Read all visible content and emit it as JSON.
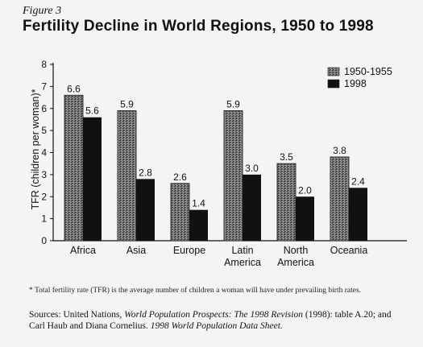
{
  "figure_label": "Figure 3",
  "footnote": "* Total fertility rate (TFR) is the average number of children a woman will have under prevailing birth rates.",
  "sources": {
    "prefix": "Sources: United Nations,",
    "pub1": "World Population Prospects: The 1998 Revision",
    "mid": "(1998): table A.20; and Carl Haub and Diana Cornelius.",
    "pub2": "1998 World Population Data Sheet."
  },
  "chart_data": {
    "type": "bar",
    "title": "Fertility Decline in World Regions, 1950 to 1998",
    "xlabel": "",
    "ylabel": "TFR (children per woman)*",
    "ylim": [
      0,
      8
    ],
    "yticks": [
      0,
      1,
      2,
      3,
      4,
      5,
      6,
      7,
      8
    ],
    "grid": false,
    "legend_position": "top-right",
    "categories": [
      "Africa",
      "Asia",
      "Europe",
      "Latin America",
      "North America",
      "Oceania"
    ],
    "series": [
      {
        "name": "1950-1955",
        "values": [
          6.6,
          5.9,
          2.6,
          5.9,
          3.5,
          3.8
        ],
        "color": "#6e6e6e",
        "style": "textured"
      },
      {
        "name": "1998",
        "values": [
          5.6,
          2.8,
          1.4,
          3.0,
          2.0,
          2.4
        ],
        "color": "#111111",
        "style": "solid"
      }
    ],
    "value_labels": [
      [
        "6.6",
        "5.9",
        "2.6",
        "5.9",
        "3.5",
        "3.8"
      ],
      [
        "5.6",
        "2.8",
        "1.4",
        "3.0",
        "2.0",
        "2.4"
      ]
    ]
  }
}
